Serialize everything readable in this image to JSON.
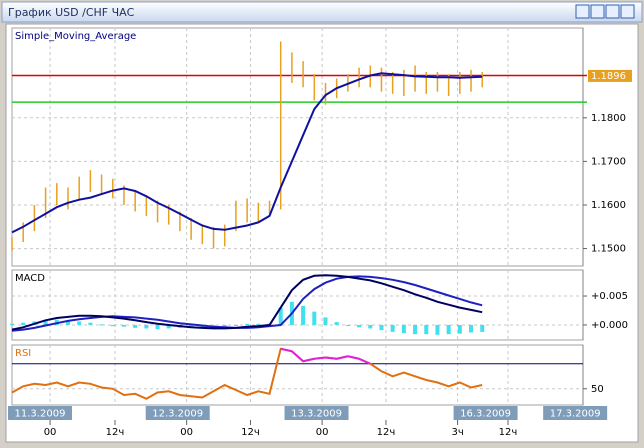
{
  "window": {
    "title": "График USD /CHF  ЧАС"
  },
  "chart_data": [
    {
      "type": "ohlc",
      "title": "Simple_Moving_Average",
      "title_color": "#000080",
      "xlim": [
        0,
        51
      ],
      "ylim": [
        1.146,
        1.2006
      ],
      "yticks": [
        {
          "value": 1.15,
          "label": "1.1500"
        },
        {
          "value": 1.16,
          "label": "1.1600"
        },
        {
          "value": 1.17,
          "label": "1.1700"
        },
        {
          "value": 1.18,
          "label": "1.1800"
        }
      ],
      "bar_color": "#e8a020",
      "high": [
        1.1525,
        1.156,
        1.16,
        1.164,
        1.165,
        1.164,
        1.1665,
        1.168,
        1.167,
        1.166,
        1.1645,
        1.163,
        1.162,
        1.161,
        1.16,
        1.1585,
        1.157,
        1.1555,
        1.155,
        1.1555,
        1.161,
        1.1615,
        1.1605,
        1.161,
        1.1975,
        1.195,
        1.193,
        1.19,
        1.188,
        1.189,
        1.19,
        1.1915,
        1.192,
        1.1915,
        1.1905,
        1.191,
        1.192,
        1.1905,
        1.1905,
        1.19,
        1.1905,
        1.191,
        1.1905
      ],
      "low": [
        1.1495,
        1.1515,
        1.154,
        1.157,
        1.16,
        1.159,
        1.161,
        1.163,
        1.1625,
        1.1615,
        1.16,
        1.1585,
        1.1575,
        1.156,
        1.1555,
        1.154,
        1.152,
        1.151,
        1.15,
        1.1505,
        1.154,
        1.156,
        1.156,
        1.158,
        1.159,
        1.188,
        1.187,
        1.184,
        1.183,
        1.1845,
        1.186,
        1.187,
        1.187,
        1.186,
        1.1855,
        1.185,
        1.186,
        1.1855,
        1.186,
        1.185,
        1.1855,
        1.186,
        1.187
      ],
      "sma": {
        "color": "#1010a0",
        "values": [
          1.1537,
          1.155,
          1.1565,
          1.158,
          1.1595,
          1.1605,
          1.1612,
          1.1617,
          1.1625,
          1.1633,
          1.1638,
          1.1632,
          1.162,
          1.1605,
          1.1593,
          1.158,
          1.1566,
          1.1553,
          1.1545,
          1.1543,
          1.1548,
          1.1553,
          1.156,
          1.1575,
          1.164,
          1.17,
          1.176,
          1.182,
          1.1852,
          1.1868,
          1.1878,
          1.1888,
          1.1897,
          1.1902,
          1.19,
          1.1898,
          1.1895,
          1.1894,
          1.1893,
          1.1893,
          1.1892,
          1.1893,
          1.1894
        ]
      },
      "hlines": [
        {
          "value": 1.1897,
          "color": "#e00000"
        },
        {
          "value": 1.1836,
          "color": "#22cc22"
        }
      ],
      "last_price": 1.1896,
      "last_price_color": "#e8a020"
    },
    {
      "type": "macd",
      "title": "MACD",
      "title_color": "#000000",
      "xlim": [
        0,
        51
      ],
      "ylim": [
        -0.0026,
        0.0095
      ],
      "yticks": [
        {
          "value": 0.005,
          "label": "+0.005"
        },
        {
          "value": 0,
          "label": "+0.000"
        }
      ],
      "histogram": {
        "color": "#40e0f0",
        "values": [
          0.0002,
          0.0004,
          0.0006,
          0.0008,
          0.0009,
          0.0007,
          0.0006,
          0.0004,
          0.0001,
          -0.0002,
          -0.0003,
          -0.0005,
          -0.0006,
          -0.0007,
          -0.0006,
          -0.0005,
          -0.0005,
          -0.0004,
          -0.0003,
          -0.0002,
          0.0,
          0.0002,
          0.0002,
          0.0002,
          0.003,
          0.004,
          0.0033,
          0.0023,
          0.0013,
          0.0005,
          0.0,
          -0.0004,
          -0.0006,
          -0.0009,
          -0.0012,
          -0.0014,
          -0.0016,
          -0.0016,
          -0.0017,
          -0.0016,
          -0.0015,
          -0.0013,
          -0.0012
        ]
      },
      "macd": {
        "color": "#000060",
        "values": [
          -0.0008,
          -0.0004,
          0.0002,
          0.0008,
          0.0012,
          0.0014,
          0.0016,
          0.0016,
          0.0015,
          0.0013,
          0.0011,
          0.0008,
          0.0005,
          0.0002,
          0.0,
          -0.0002,
          -0.0004,
          -0.0005,
          -0.0006,
          -0.0006,
          -0.0005,
          -0.0003,
          -0.0002,
          0.0,
          0.003,
          0.006,
          0.0078,
          0.0085,
          0.0086,
          0.0085,
          0.0083,
          0.008,
          0.0077,
          0.0072,
          0.0066,
          0.006,
          0.0053,
          0.0047,
          0.004,
          0.0035,
          0.003,
          0.0026,
          0.0022
        ]
      },
      "signal": {
        "color": "#2020c0",
        "values": [
          -0.001,
          -0.0008,
          -0.0005,
          -0.0001,
          0.0003,
          0.0007,
          0.001,
          0.0012,
          0.0014,
          0.0015,
          0.0014,
          0.0013,
          0.0011,
          0.0009,
          0.0006,
          0.0003,
          0.0001,
          -0.0001,
          -0.0003,
          -0.0004,
          -0.0005,
          -0.0005,
          -0.0004,
          -0.0002,
          0.0,
          0.002,
          0.0045,
          0.0062,
          0.0073,
          0.008,
          0.0083,
          0.0084,
          0.0083,
          0.0081,
          0.0078,
          0.0074,
          0.0069,
          0.0063,
          0.0057,
          0.0051,
          0.0045,
          0.0039,
          0.0034
        ]
      }
    },
    {
      "type": "rsi",
      "title": "RSI",
      "title_color": "#e07010",
      "xlim": [
        0,
        51
      ],
      "ylim": [
        37,
        85
      ],
      "yticks": [
        50
      ],
      "level": 70,
      "level_color": "#000080",
      "color": "#e07010",
      "overbought_color": "#e020e0",
      "values": [
        47,
        52,
        54,
        53,
        55,
        52,
        55,
        54,
        51,
        50,
        45,
        46,
        42,
        47,
        48,
        45,
        44,
        43,
        48,
        53,
        49,
        45,
        48,
        46,
        82,
        80,
        72,
        74,
        75,
        74,
        76,
        74,
        70,
        64,
        60,
        63,
        60,
        57,
        55,
        52,
        55,
        51,
        53
      ],
      "xticks": [
        {
          "value": 3.4,
          "label": "00"
        },
        {
          "value": 9.2,
          "label": "12ч"
        },
        {
          "value": 15.6,
          "label": "00"
        },
        {
          "value": 21.3,
          "label": "12ч"
        },
        {
          "value": 27.7,
          "label": "00"
        },
        {
          "value": 33.4,
          "label": "12ч"
        },
        {
          "value": 39.8,
          "label": "3ч"
        },
        {
          "value": 44.3,
          "label": "12ч"
        }
      ],
      "date_labels": [
        {
          "value": 2.5,
          "label": "11.3.2009"
        },
        {
          "value": 14.8,
          "label": "12.3.2009"
        },
        {
          "value": 27.2,
          "label": "13.3.2009"
        },
        {
          "value": 42.3,
          "label": "16.3.2009"
        },
        {
          "value": 50.3,
          "label": "17.3.2009"
        }
      ]
    }
  ]
}
